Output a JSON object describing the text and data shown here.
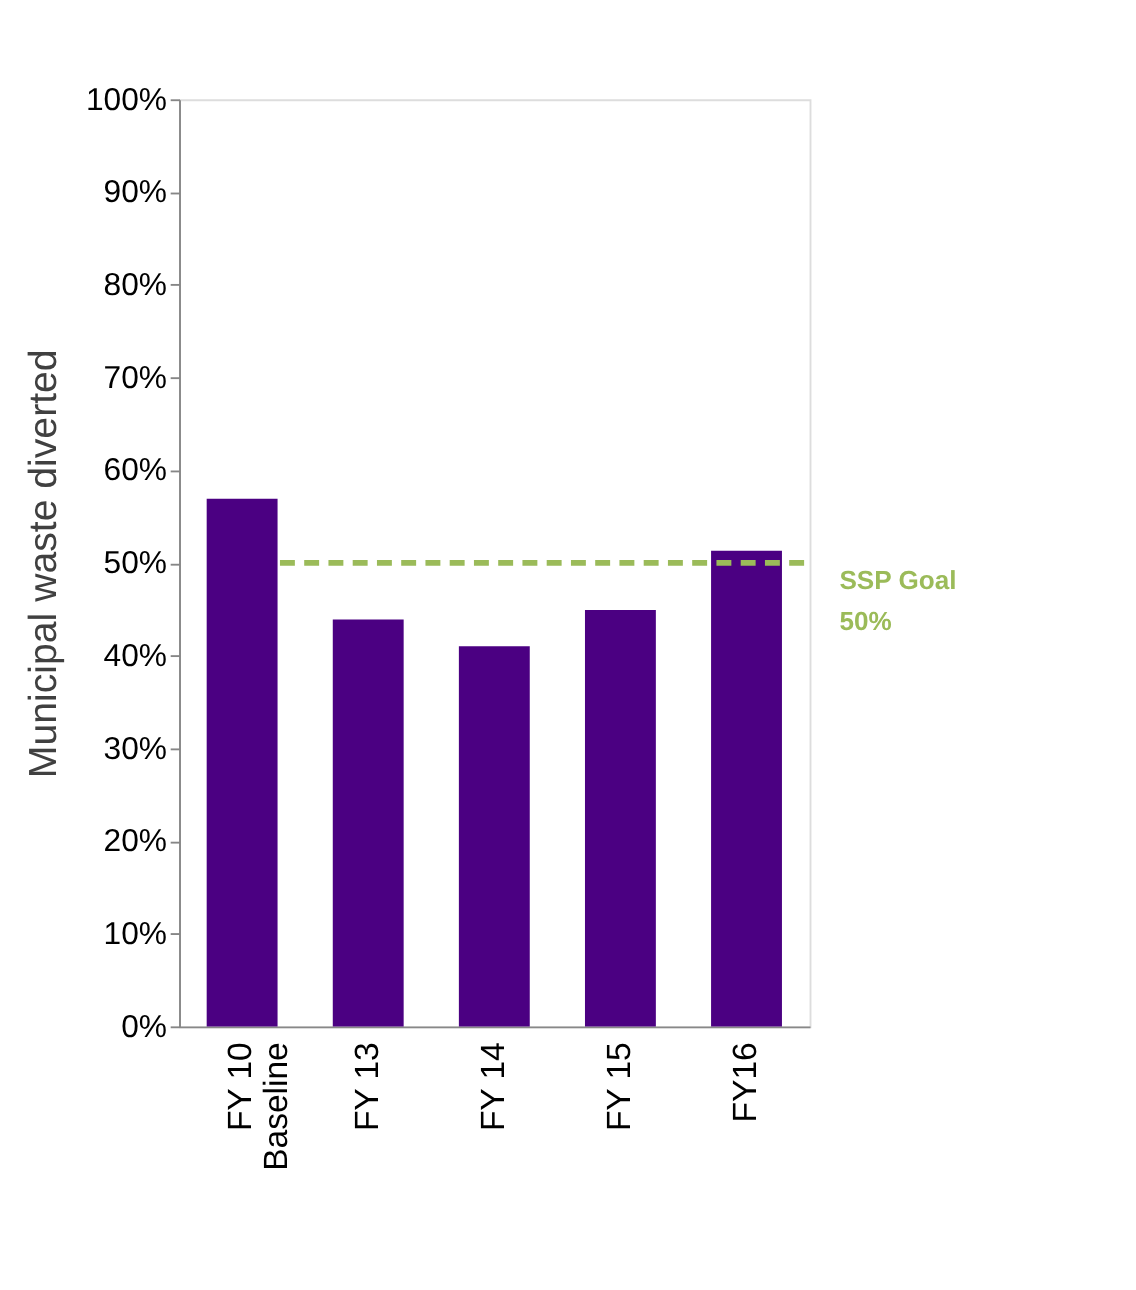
{
  "chart_data": {
    "type": "bar",
    "ylabel": "Municipal  waste diverted",
    "categories": [
      "FY 10\nBaseline",
      "FY 13",
      "FY 14",
      "FY 15",
      "FY16"
    ],
    "values": [
      56.9,
      43.9,
      41.0,
      44.9,
      51.3
    ],
    "color": "#4b0082",
    "ylim": [
      0,
      100
    ],
    "yticks": [
      {
        "value": 0,
        "label": "0%"
      },
      {
        "value": 10,
        "label": "10%"
      },
      {
        "value": 20,
        "label": "20%"
      },
      {
        "value": 30,
        "label": "30%"
      },
      {
        "value": 40,
        "label": "40%"
      },
      {
        "value": 50,
        "label": "50%"
      },
      {
        "value": 60,
        "label": "60%"
      },
      {
        "value": 70,
        "label": "70%"
      },
      {
        "value": 80,
        "label": "80%"
      },
      {
        "value": 90,
        "label": "90%"
      },
      {
        "value": 100,
        "label": "100%"
      }
    ],
    "ref_lines": [
      {
        "axis": "y",
        "value": 50,
        "label": "SSP Goal\n 50%",
        "color": "#9bbb59",
        "line_style": "dashed"
      }
    ],
    "grid": false
  }
}
